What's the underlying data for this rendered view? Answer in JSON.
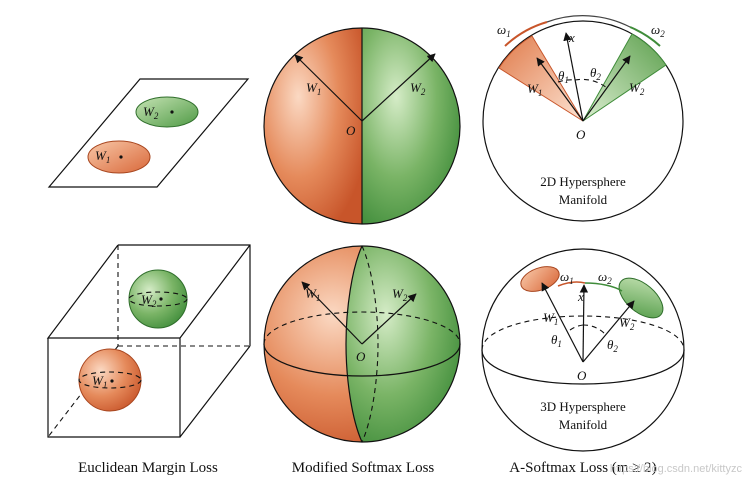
{
  "colors": {
    "orange_light": "#f6c3a4",
    "orange": "#e07b4b",
    "orange_dark": "#c8552a",
    "green_light": "#b9dba8",
    "green": "#6aaa58",
    "green_dark": "#3f8c3a"
  },
  "captions": {
    "euclidean": "Euclidean Margin Loss",
    "modified": "Modified Softmax Loss",
    "asoftmax": "A-Softmax Loss (m ≥ 2)"
  },
  "labels": {
    "w1": "W",
    "w2": "W",
    "sub1": "1",
    "sub2": "2",
    "origin": "O",
    "x": "x",
    "omega1": "ω",
    "omega2": "ω",
    "theta1": "θ",
    "theta2": "θ"
  },
  "hypersphere_2d": {
    "line1": "2D Hypersphere",
    "line2": "Manifold"
  },
  "hypersphere_3d": {
    "line1": "3D Hypersphere",
    "line2": "Manifold"
  },
  "watermark": "https://blog.csdn.net/kittyzc"
}
